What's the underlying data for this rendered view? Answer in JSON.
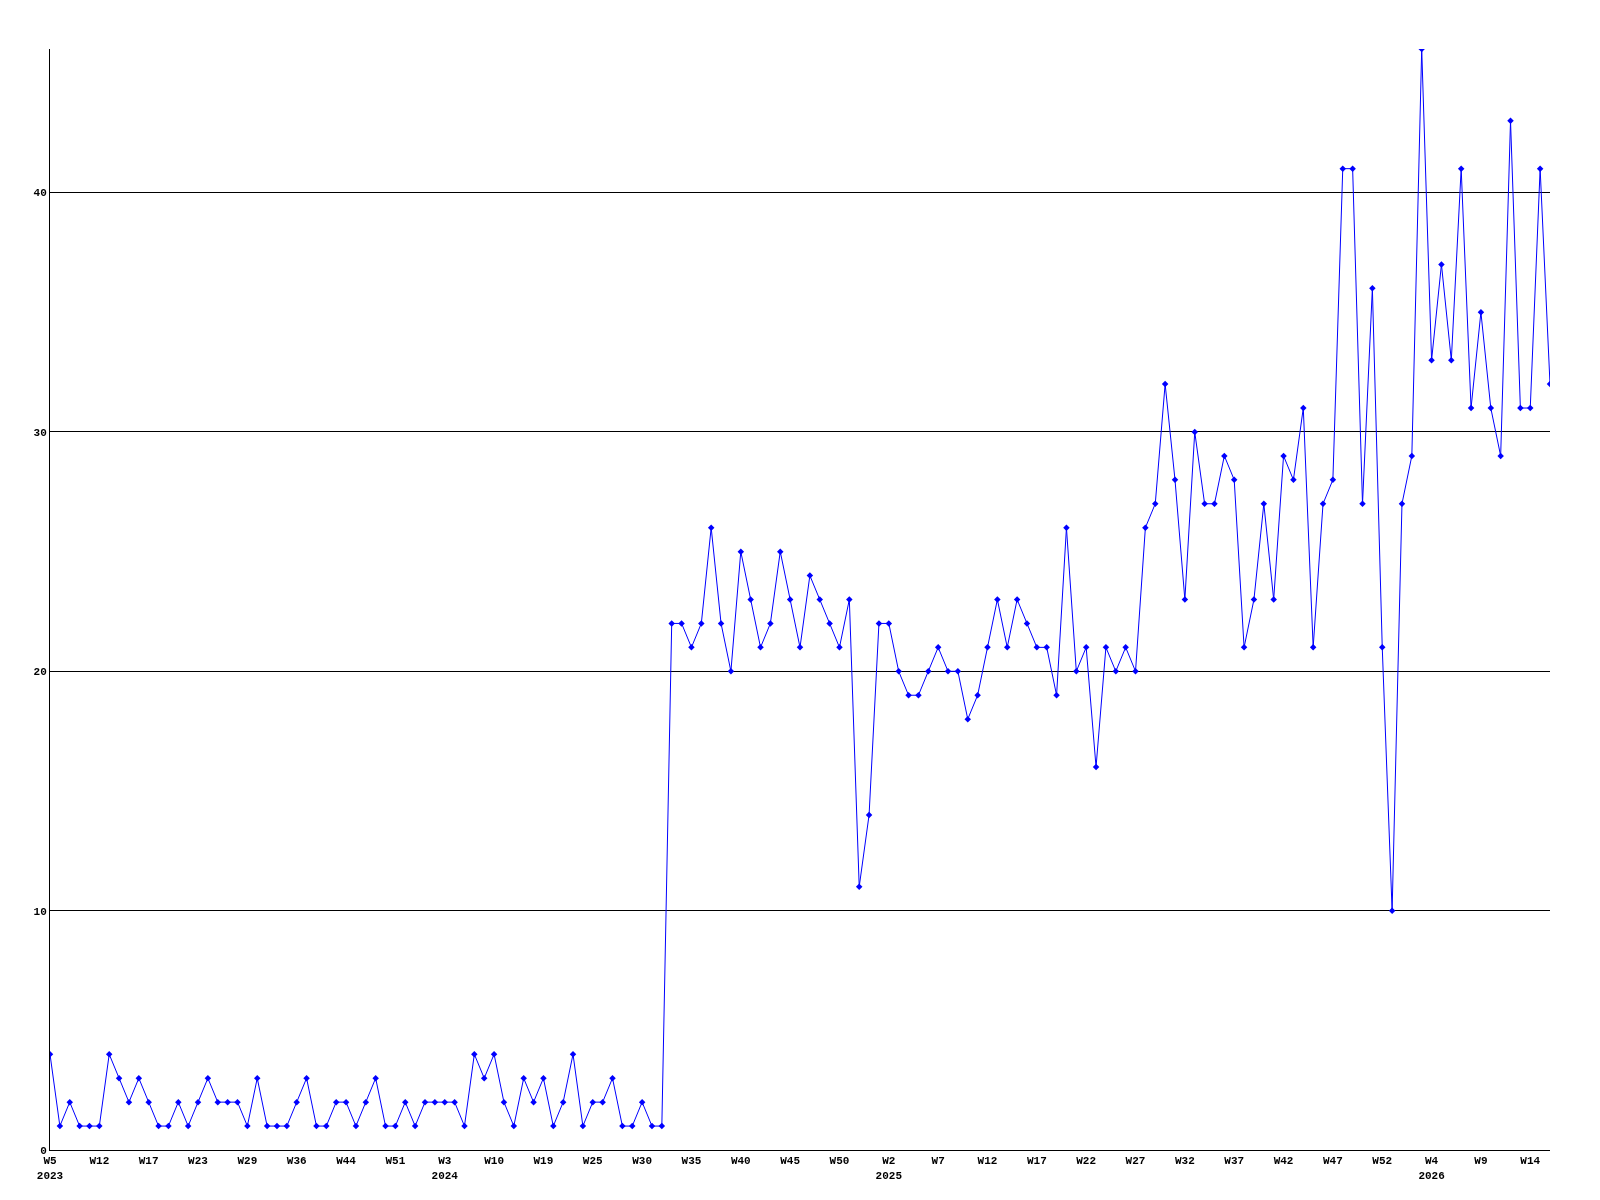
{
  "chart_data": {
    "type": "line",
    "categories": [
      "W5\n2023",
      null,
      null,
      null,
      null,
      "W12",
      null,
      null,
      null,
      null,
      "W17",
      null,
      null,
      null,
      null,
      "W23",
      null,
      null,
      null,
      null,
      "W29",
      null,
      null,
      null,
      null,
      "W36",
      null,
      null,
      null,
      null,
      "W44",
      null,
      null,
      null,
      null,
      "W51",
      null,
      null,
      null,
      null,
      "W3\n2024",
      null,
      null,
      null,
      null,
      "W10",
      null,
      null,
      null,
      null,
      "W19",
      null,
      null,
      null,
      null,
      "W25",
      null,
      null,
      null,
      null,
      "W30",
      null,
      null,
      null,
      null,
      "W35",
      null,
      null,
      null,
      null,
      "W40",
      null,
      null,
      null,
      null,
      "W45",
      null,
      null,
      null,
      null,
      "W50",
      null,
      null,
      null,
      null,
      "W2\n2025",
      null,
      null,
      null,
      null,
      "W7",
      null,
      null,
      null,
      null,
      "W12",
      null,
      null,
      null,
      null,
      "W17",
      null,
      null,
      null,
      null,
      "W22",
      null,
      null,
      null,
      null,
      "W27",
      null,
      null,
      null,
      null,
      "W32",
      null,
      null,
      null,
      null,
      "W37",
      null,
      null,
      null,
      null,
      "W42",
      null,
      null,
      null,
      null,
      "W47",
      null,
      null,
      null,
      null,
      "W52",
      null,
      null,
      null,
      null,
      "W4\n2026",
      null,
      null,
      null,
      null,
      "W9",
      null,
      null,
      null,
      null,
      "W14",
      null,
      null
    ],
    "series": [
      {
        "color": "#0000ff",
        "values": [
          4,
          1,
          2,
          1,
          1,
          1,
          4,
          3,
          2,
          3,
          2,
          1,
          1,
          2,
          1,
          2,
          3,
          2,
          2,
          2,
          1,
          3,
          1,
          1,
          1,
          2,
          3,
          1,
          1,
          2,
          2,
          1,
          2,
          3,
          1,
          1,
          2,
          1,
          2,
          2,
          2,
          2,
          1,
          4,
          3,
          4,
          2,
          1,
          3,
          2,
          3,
          1,
          2,
          4,
          1,
          2,
          2,
          3,
          1,
          1,
          2,
          1,
          1,
          22,
          22,
          21,
          22,
          26,
          22,
          20,
          25,
          23,
          21,
          22,
          25,
          23,
          21,
          24,
          23,
          22,
          21,
          23,
          11,
          14,
          22,
          22,
          20,
          19,
          19,
          20,
          21,
          20,
          20,
          18,
          19,
          21,
          23,
          21,
          23,
          22,
          21,
          21,
          19,
          26,
          20,
          21,
          16,
          21,
          20,
          21,
          20,
          26,
          27,
          32,
          28,
          23,
          30,
          27,
          27,
          29,
          28,
          21,
          23,
          27,
          23,
          29,
          28,
          31,
          21,
          27,
          28,
          41,
          41,
          27,
          36,
          21,
          10,
          27,
          29,
          46,
          33,
          37,
          33,
          41,
          31,
          35,
          31,
          29,
          43,
          31,
          31,
          41,
          32
        ]
      }
    ],
    "ylim": [
      0,
      46
    ],
    "yticks": [
      0,
      10,
      20,
      30,
      40
    ],
    "grid": "y",
    "marker": "diamond",
    "line_style": "solid"
  }
}
